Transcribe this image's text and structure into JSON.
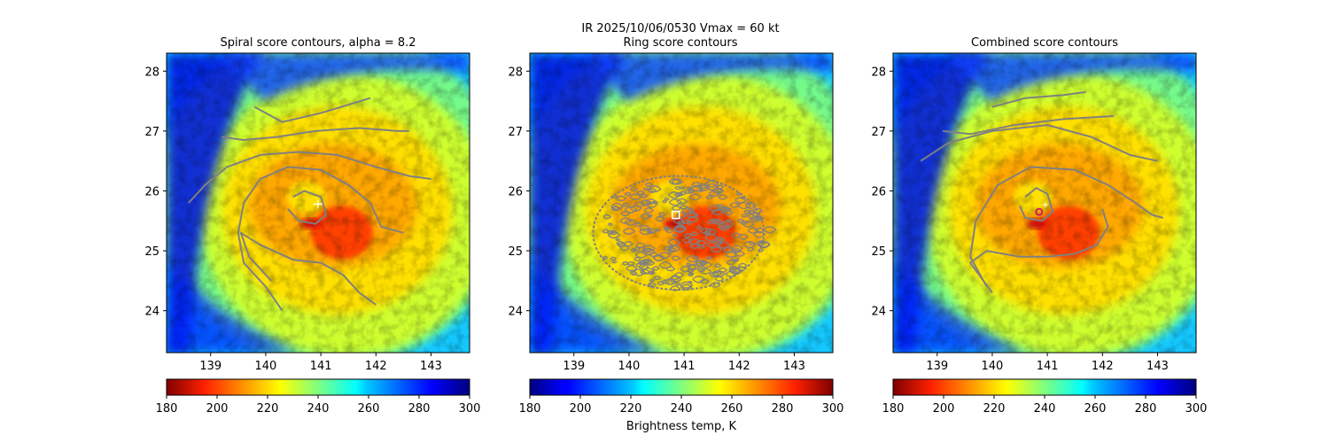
{
  "figure": {
    "suptitle_line1": "IR  2025/10/06/0530    Vmax = 60 kt",
    "suptitle_line2": "Ring score contours"
  },
  "chart_data": [
    {
      "type": "heatmap",
      "title": "Spiral score contours, alpha =  8.2",
      "xlim": [
        138.2,
        143.7
      ],
      "ylim": [
        23.3,
        28.3
      ],
      "xticks": [
        139,
        140,
        141,
        142,
        143
      ],
      "yticks": [
        24,
        25,
        26,
        27,
        28
      ],
      "center": {
        "lon": 140.9,
        "lat": 25.75
      },
      "marker": {
        "type": "plus",
        "lon": 140.95,
        "lat": 25.78,
        "color": "#ffffff"
      },
      "contour_color": "#808080",
      "contours": [
        [
          [
            138.6,
            25.8
          ],
          [
            138.9,
            26.1
          ],
          [
            139.3,
            26.4
          ],
          [
            139.9,
            26.6
          ],
          [
            140.6,
            26.65
          ],
          [
            141.3,
            26.6
          ],
          [
            142.0,
            26.4
          ],
          [
            142.6,
            26.25
          ],
          [
            143.0,
            26.2
          ]
        ],
        [
          [
            140.3,
            24.0
          ],
          [
            140.0,
            24.4
          ],
          [
            139.6,
            24.8
          ],
          [
            139.5,
            25.3
          ],
          [
            139.6,
            25.8
          ],
          [
            139.9,
            26.2
          ],
          [
            140.4,
            26.4
          ],
          [
            141.0,
            26.35
          ],
          [
            141.5,
            26.1
          ],
          [
            141.9,
            25.8
          ],
          [
            142.1,
            25.4
          ],
          [
            142.5,
            25.3
          ]
        ],
        [
          [
            140.5,
            25.9
          ],
          [
            140.7,
            26.0
          ],
          [
            141.0,
            25.9
          ],
          [
            141.1,
            25.6
          ],
          [
            140.9,
            25.45
          ],
          [
            140.6,
            25.5
          ],
          [
            140.4,
            25.7
          ]
        ],
        [
          [
            140.1,
            24.5
          ],
          [
            139.7,
            24.9
          ],
          [
            139.55,
            25.3
          ],
          [
            139.9,
            25.1
          ],
          [
            140.5,
            24.85
          ],
          [
            141.0,
            24.8
          ],
          [
            141.4,
            24.6
          ],
          [
            141.7,
            24.3
          ],
          [
            142.0,
            24.1
          ]
        ],
        [
          [
            139.2,
            26.9
          ],
          [
            139.6,
            26.85
          ],
          [
            140.2,
            26.9
          ],
          [
            140.9,
            27.0
          ],
          [
            141.7,
            27.05
          ],
          [
            142.4,
            27.0
          ],
          [
            142.6,
            27.0
          ]
        ],
        [
          [
            139.8,
            27.4
          ],
          [
            140.3,
            27.15
          ],
          [
            141.0,
            27.3
          ],
          [
            141.9,
            27.55
          ]
        ]
      ],
      "colorbar": {
        "cmap": "jet_r",
        "vmin": 180,
        "vmax": 300,
        "ticks": [
          180,
          200,
          220,
          240,
          260,
          280,
          300
        ],
        "label": ""
      }
    },
    {
      "type": "heatmap",
      "title": "Ring score contours",
      "xlim": [
        138.2,
        143.7
      ],
      "ylim": [
        23.3,
        28.3
      ],
      "xticks": [
        139,
        140,
        141,
        142,
        143
      ],
      "yticks": [
        24,
        25,
        26,
        27,
        28
      ],
      "center": {
        "lon": 140.9,
        "lat": 25.75
      },
      "marker": {
        "type": "square",
        "lon": 140.85,
        "lat": 25.6,
        "color": "#ffffff"
      },
      "contour_color": "#808080",
      "ring_region": {
        "lon": 140.9,
        "lat": 25.3,
        "rx_deg": 1.55,
        "ry_deg": 0.95
      },
      "contours": [],
      "colorbar": {
        "cmap": "jet",
        "vmin": 180,
        "vmax": 300,
        "ticks": [
          180,
          200,
          220,
          240,
          260,
          280,
          300
        ],
        "label": "Brightness temp, K"
      }
    },
    {
      "type": "heatmap",
      "title": "Combined score contours",
      "xlim": [
        138.2,
        143.7
      ],
      "ylim": [
        23.3,
        28.3
      ],
      "xticks": [
        139,
        140,
        141,
        142,
        143
      ],
      "yticks": [
        24,
        25,
        26,
        27,
        28
      ],
      "center": {
        "lon": 140.9,
        "lat": 25.75
      },
      "marker": {
        "type": "circle",
        "lon": 140.85,
        "lat": 25.65,
        "color": "#d81b60"
      },
      "contour_color": "#808080",
      "contours": [
        [
          [
            138.7,
            26.5
          ],
          [
            139.2,
            26.8
          ],
          [
            140.0,
            27.0
          ],
          [
            141.0,
            27.1
          ],
          [
            141.8,
            26.9
          ],
          [
            142.5,
            26.6
          ],
          [
            143.0,
            26.5
          ]
        ],
        [
          [
            139.9,
            24.4
          ],
          [
            139.6,
            24.9
          ],
          [
            139.7,
            25.5
          ],
          [
            140.1,
            26.1
          ],
          [
            140.7,
            26.4
          ],
          [
            141.5,
            26.35
          ],
          [
            142.1,
            26.1
          ],
          [
            142.6,
            25.8
          ],
          [
            142.9,
            25.6
          ],
          [
            143.1,
            25.55
          ]
        ],
        [
          [
            140.6,
            25.9
          ],
          [
            140.8,
            26.05
          ],
          [
            141.0,
            25.95
          ],
          [
            141.1,
            25.65
          ],
          [
            140.9,
            25.5
          ],
          [
            140.6,
            25.55
          ],
          [
            140.5,
            25.75
          ]
        ],
        [
          [
            140.0,
            24.3
          ],
          [
            139.6,
            24.8
          ],
          [
            139.9,
            25.0
          ],
          [
            140.5,
            24.9
          ],
          [
            141.0,
            24.9
          ],
          [
            141.5,
            24.95
          ],
          [
            141.9,
            25.1
          ],
          [
            142.1,
            25.4
          ],
          [
            142.0,
            25.7
          ]
        ],
        [
          [
            139.1,
            27.0
          ],
          [
            139.6,
            26.95
          ],
          [
            140.4,
            27.1
          ],
          [
            141.3,
            27.2
          ],
          [
            142.2,
            27.25
          ]
        ],
        [
          [
            140.0,
            27.4
          ],
          [
            140.6,
            27.55
          ],
          [
            141.3,
            27.6
          ],
          [
            141.7,
            27.65
          ]
        ]
      ],
      "colorbar": {
        "cmap": "jet_r",
        "vmin": 180,
        "vmax": 300,
        "ticks": [
          180,
          200,
          220,
          240,
          260,
          280,
          300
        ],
        "label": ""
      }
    }
  ]
}
